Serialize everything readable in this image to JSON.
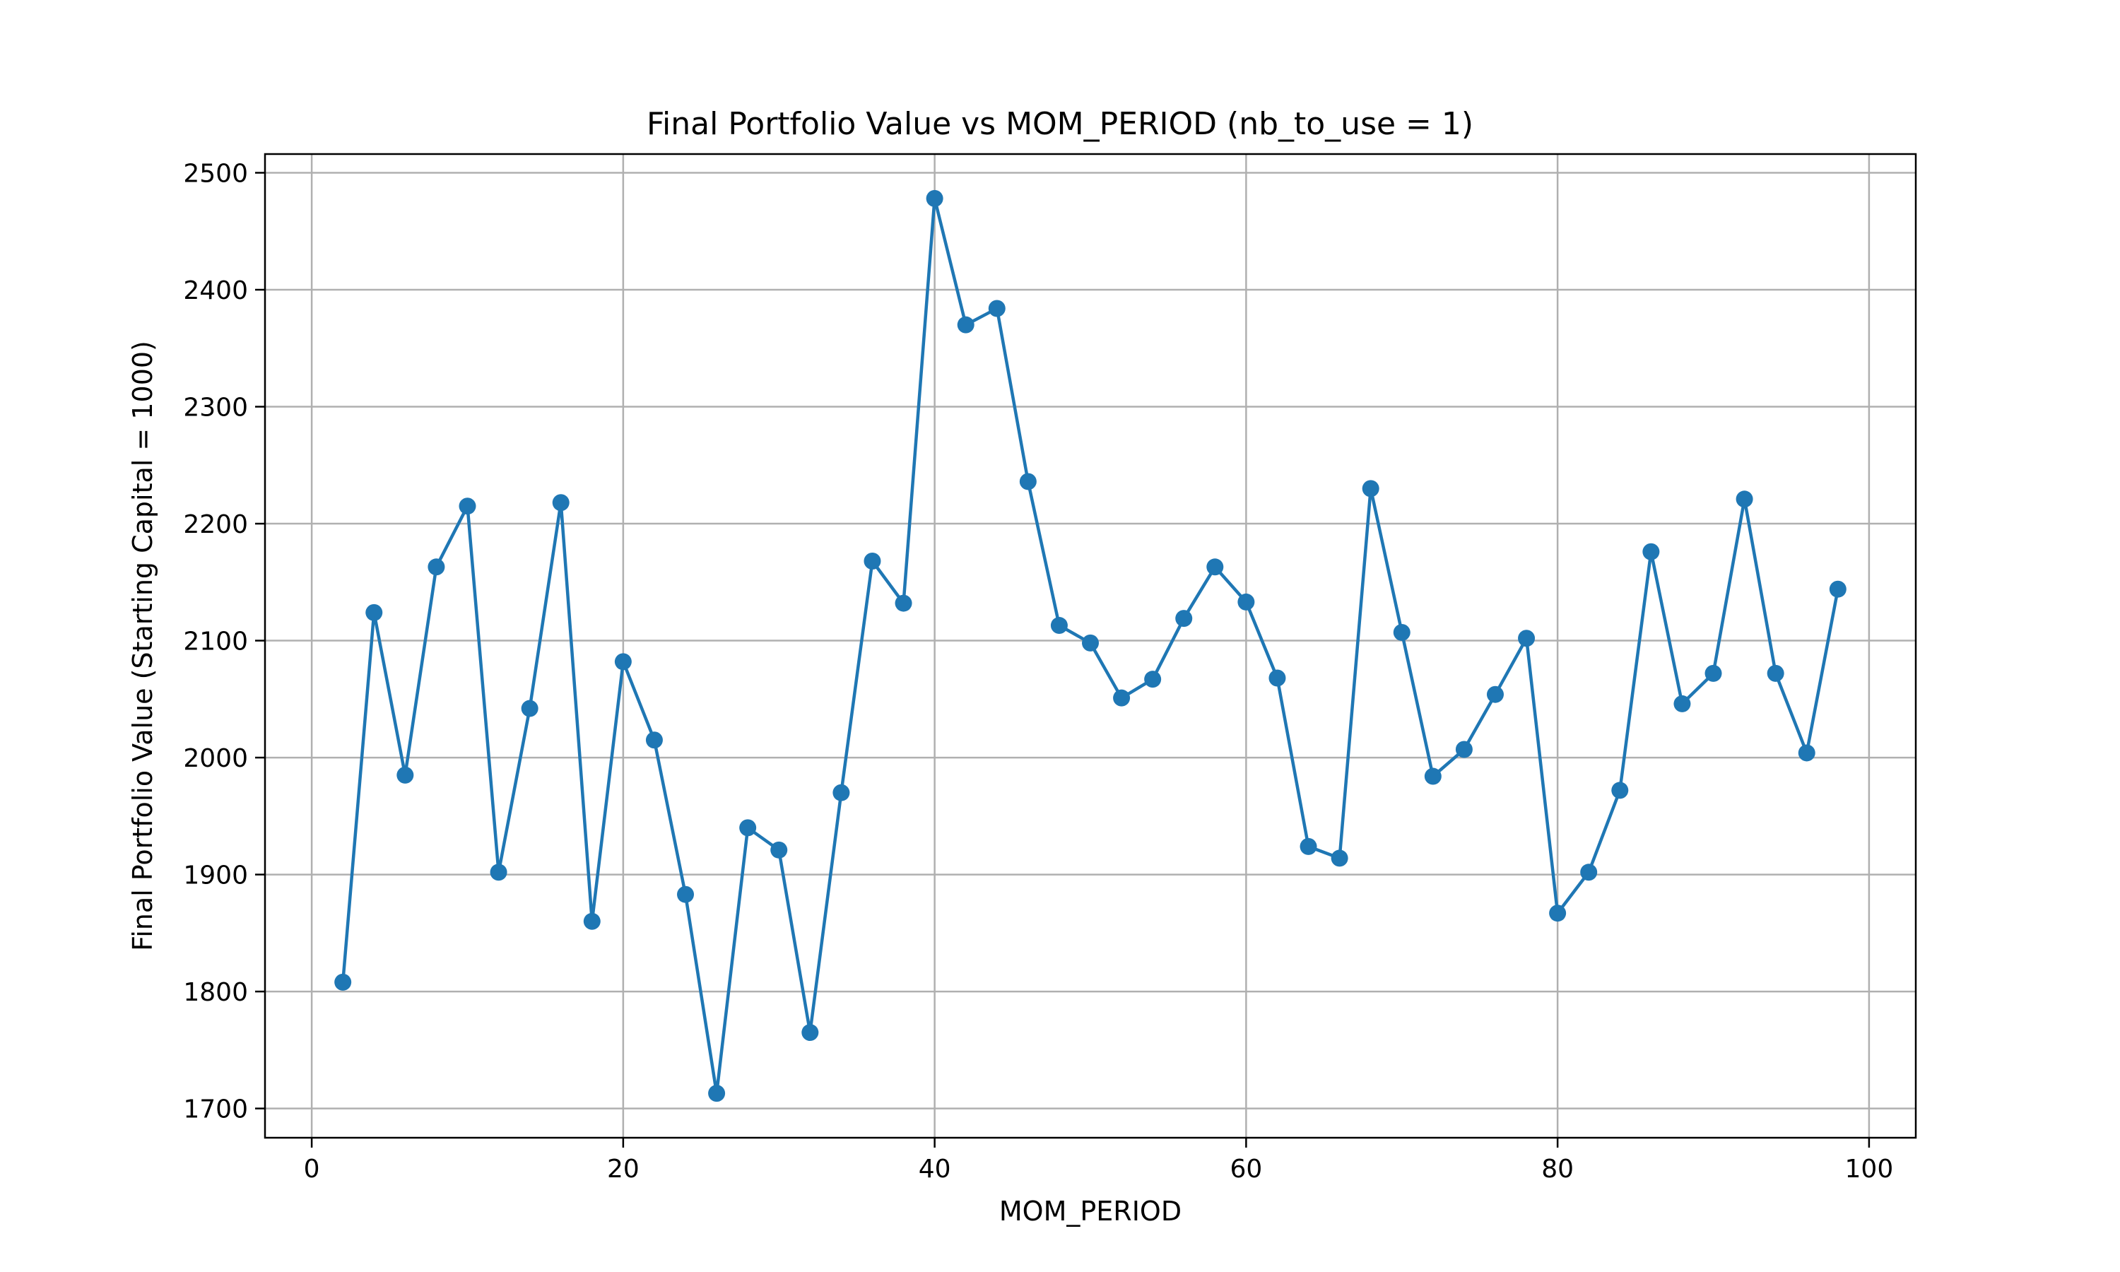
{
  "chart_data": {
    "type": "line",
    "title": "Final Portfolio Value vs MOM_PERIOD (nb_to_use = 1)",
    "xlabel": "MOM_PERIOD",
    "ylabel": "Final Portfolio Value (Starting Capital = 1000)",
    "xlim": [
      -3,
      103
    ],
    "ylim": [
      1675,
      2516
    ],
    "xticks": [
      0,
      20,
      40,
      60,
      80,
      100
    ],
    "yticks": [
      1700,
      1800,
      1900,
      2000,
      2100,
      2200,
      2300,
      2400,
      2500
    ],
    "grid": true,
    "legend": "none",
    "series": [
      {
        "color": "#1f77b4",
        "marker": "circle",
        "x": [
          2,
          4,
          6,
          8,
          10,
          12,
          14,
          16,
          18,
          20,
          22,
          24,
          26,
          28,
          30,
          32,
          34,
          36,
          38,
          40,
          42,
          44,
          46,
          48,
          50,
          52,
          54,
          56,
          58,
          60,
          62,
          64,
          66,
          68,
          70,
          72,
          74,
          76,
          78,
          80,
          82,
          84,
          86,
          88,
          90,
          92,
          94,
          96,
          98
        ],
        "values": [
          1808,
          2124,
          1985,
          2163,
          2215,
          1902,
          2042,
          2218,
          1860,
          2082,
          2015,
          1883,
          1713,
          1940,
          1921,
          1765,
          1970,
          2168,
          2132,
          2478,
          2370,
          2384,
          2236,
          2113,
          2098,
          2051,
          2067,
          2119,
          2163,
          2133,
          2068,
          1924,
          1914,
          2230,
          2107,
          1984,
          2007,
          2054,
          2102,
          1867,
          1902,
          1972,
          2176,
          2046,
          2072,
          2221,
          2072,
          2004,
          2144
        ]
      }
    ]
  }
}
